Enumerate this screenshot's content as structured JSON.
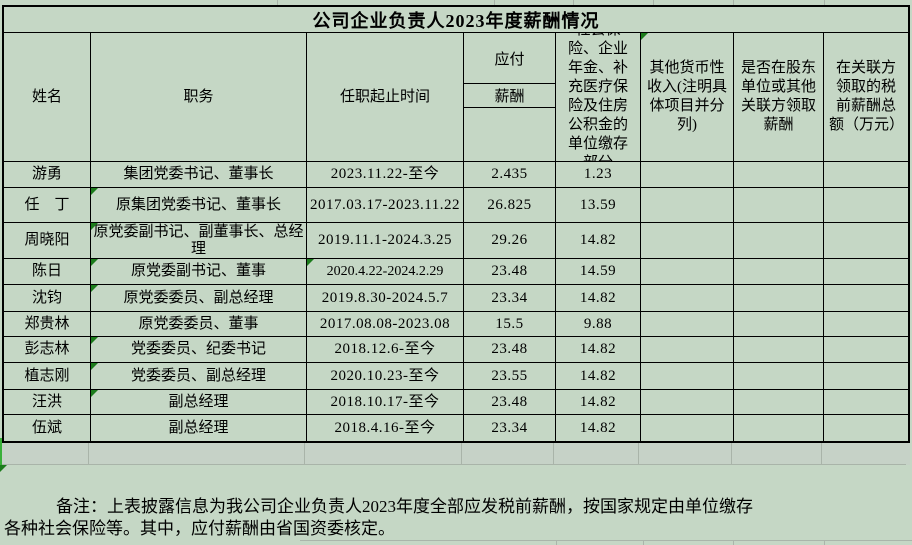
{
  "title": "公司企业负责人2023年度薪酬情况",
  "columns": [
    {
      "key": "name",
      "label": "姓名"
    },
    {
      "key": "position",
      "label": "职务"
    },
    {
      "key": "term",
      "label": "任职起止时间"
    },
    {
      "key": "salary",
      "label_top": "应付",
      "label_mid": "薪酬"
    },
    {
      "key": "insurance",
      "label": "社会保险、企业年金、补充医疗保险及住房公积金的单位缴存部分"
    },
    {
      "key": "other_income",
      "label": "其他货币性收入(注明具体项目并分列)",
      "comment_marker": true
    },
    {
      "key": "related_party",
      "label": "是否在股东单位或其他关联方领取薪酬"
    },
    {
      "key": "related_total",
      "label": "在关联方领取的税前薪酬总额（万元）"
    }
  ],
  "rows": [
    {
      "name": "游勇",
      "position": "集团党委书记、董事长",
      "term": "2023.11.22-至今",
      "salary": "2.435",
      "insurance": "1.23",
      "other_income": "",
      "related_party": "",
      "related_total": "",
      "markers": []
    },
    {
      "name": "任　丁",
      "position": "原集团党委书记、董事长",
      "term": "2017.03.17-2023.11.22",
      "salary": "26.825",
      "insurance": "13.59",
      "other_income": "",
      "related_party": "",
      "related_total": "",
      "markers": [
        "position"
      ]
    },
    {
      "name": "周晓阳",
      "position": "原党委副书记、副董事长、总经理",
      "term": "2019.11.1-2024.3.25",
      "salary": "29.26",
      "insurance": "14.82",
      "other_income": "",
      "related_party": "",
      "related_total": "",
      "markers": [
        "position"
      ]
    },
    {
      "name": "陈日",
      "position": "原党委副书记、董事",
      "term": "2020.4.22-2024.2.29",
      "term_alt": true,
      "salary": "23.48",
      "insurance": "14.59",
      "other_income": "",
      "related_party": "",
      "related_total": "",
      "markers": [
        "position",
        "term"
      ]
    },
    {
      "name": "沈钧",
      "position": "原党委委员、副总经理",
      "term": "2019.8.30-2024.5.7",
      "salary": "23.34",
      "insurance": "14.82",
      "other_income": "",
      "related_party": "",
      "related_total": "",
      "markers": [
        "position"
      ]
    },
    {
      "name": "郑贵林",
      "position": "原党委委员、董事",
      "term": "2017.08.08-2023.08",
      "salary": "15.5",
      "insurance": "9.88",
      "other_income": "",
      "related_party": "",
      "related_total": "",
      "markers": []
    },
    {
      "name": "彭志林",
      "position": "党委委员、纪委书记",
      "term": "2018.12.6-至今",
      "salary": "23.48",
      "insurance": "14.82",
      "other_income": "",
      "related_party": "",
      "related_total": "",
      "markers": [
        "position"
      ]
    },
    {
      "name": "植志刚",
      "position": "党委委员、副总经理",
      "term": "2020.10.23-至今",
      "salary": "23.55",
      "insurance": "14.82",
      "other_income": "",
      "related_party": "",
      "related_total": "",
      "markers": [
        "position"
      ]
    },
    {
      "name": "汪洪",
      "position": "副总经理",
      "term": "2018.10.17-至今",
      "salary": "23.48",
      "insurance": "14.82",
      "other_income": "",
      "related_party": "",
      "related_total": "",
      "markers": [
        "position"
      ]
    },
    {
      "name": "伍斌",
      "position": "副总经理",
      "term": "2018.4.16-至今",
      "salary": "23.34",
      "insurance": "14.82",
      "other_income": "",
      "related_party": "",
      "related_total": "",
      "markers": []
    }
  ],
  "note": {
    "line1": "备注：上表披露信息为我公司企业负责人2023年度全部应发税前薪酬，按国家规定由单位缴存",
    "line2": "各种社会保险等。其中，应付薪酬由省国资委核定。"
  },
  "colors": {
    "background": "#c5d7c5",
    "grid_line": "#a9b4a9",
    "table_border": "#000000",
    "comment_indicator": "#1c7c1c",
    "text": "#000000"
  }
}
